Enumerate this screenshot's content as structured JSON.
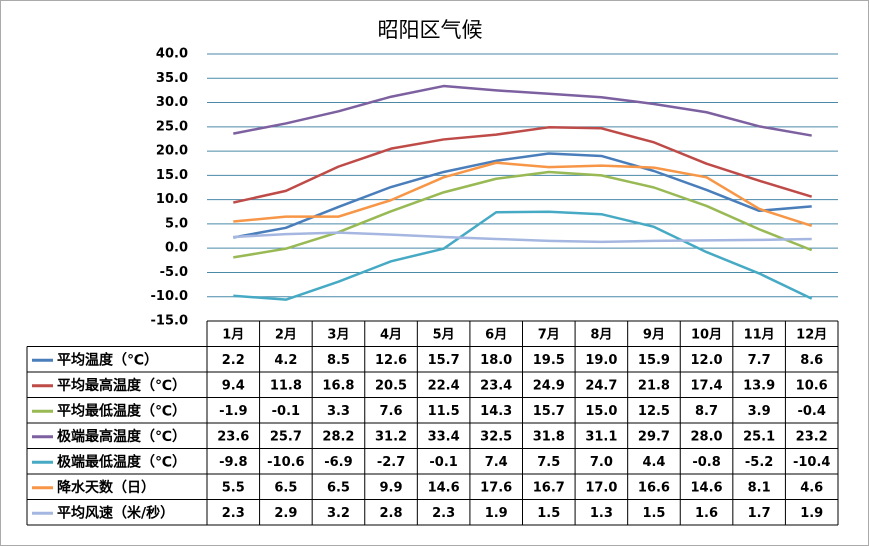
{
  "chart_data": {
    "type": "line",
    "title": "昭阳区气候",
    "categories": [
      "1月",
      "2月",
      "3月",
      "4月",
      "5月",
      "6月",
      "7月",
      "8月",
      "9月",
      "10月",
      "11月",
      "12月"
    ],
    "ylim": [
      -15,
      40
    ],
    "yticks": [
      {
        "value": -15,
        "label": "-15.0"
      },
      {
        "value": -10,
        "label": "-10.0"
      },
      {
        "value": -5,
        "label": "-5.0"
      },
      {
        "value": 0,
        "label": "0.0"
      },
      {
        "value": 5,
        "label": "5.0"
      },
      {
        "value": 10,
        "label": "10.0"
      },
      {
        "value": 15,
        "label": "15.0"
      },
      {
        "value": 20,
        "label": "20.0"
      },
      {
        "value": 25,
        "label": "25.0"
      },
      {
        "value": 30,
        "label": "30.0"
      },
      {
        "value": 35,
        "label": "35.0"
      },
      {
        "value": 40,
        "label": "40.0"
      }
    ],
    "grid": true,
    "series": [
      {
        "name": "平均温度（℃）",
        "color": "#4a7ebb",
        "values": [
          2.2,
          4.2,
          8.5,
          12.6,
          15.7,
          18.0,
          19.5,
          19.0,
          15.9,
          12.0,
          7.7,
          8.6
        ],
        "value_labels": [
          "2.2",
          "4.2",
          "8.5",
          "12.6",
          "15.7",
          "18.0",
          "19.5",
          "19.0",
          "15.9",
          "12.0",
          "7.7",
          "8.6"
        ]
      },
      {
        "name": "平均最高温度（℃）",
        "color": "#be4b48",
        "values": [
          9.4,
          11.8,
          16.8,
          20.5,
          22.4,
          23.4,
          24.9,
          24.7,
          21.8,
          17.4,
          13.9,
          10.6
        ],
        "value_labels": [
          "9.4",
          "11.8",
          "16.8",
          "20.5",
          "22.4",
          "23.4",
          "24.9",
          "24.7",
          "21.8",
          "17.4",
          "13.9",
          "10.6"
        ]
      },
      {
        "name": "平均最低温度（℃）",
        "color": "#98b954",
        "values": [
          -1.9,
          -0.1,
          3.3,
          7.6,
          11.5,
          14.3,
          15.7,
          15.0,
          12.5,
          8.7,
          3.9,
          -0.4
        ],
        "value_labels": [
          "-1.9",
          "-0.1",
          "3.3",
          "7.6",
          "11.5",
          "14.3",
          "15.7",
          "15.0",
          "12.5",
          "8.7",
          "3.9",
          "-0.4"
        ]
      },
      {
        "name": "极端最高温度（℃）",
        "color": "#7d60a0",
        "values": [
          23.6,
          25.7,
          28.2,
          31.2,
          33.4,
          32.5,
          31.8,
          31.1,
          29.7,
          28.0,
          25.1,
          23.2
        ],
        "value_labels": [
          "23.6",
          "25.7",
          "28.2",
          "31.2",
          "33.4",
          "32.5",
          "31.8",
          "31.1",
          "29.7",
          "28.0",
          "25.1",
          "23.2"
        ]
      },
      {
        "name": "极端最低温度（℃）",
        "color": "#46aac5",
        "values": [
          -9.8,
          -10.6,
          -6.9,
          -2.7,
          -0.1,
          7.4,
          7.5,
          7.0,
          4.4,
          -0.8,
          -5.2,
          -10.4
        ],
        "value_labels": [
          "-9.8",
          "-10.6",
          "-6.9",
          "-2.7",
          "-0.1",
          "7.4",
          "7.5",
          "7.0",
          "4.4",
          "-0.8",
          "-5.2",
          "-10.4"
        ]
      },
      {
        "name": "降水天数（日）",
        "color": "#f79646",
        "values": [
          5.5,
          6.5,
          6.5,
          9.9,
          14.6,
          17.6,
          16.7,
          17.0,
          16.6,
          14.6,
          8.1,
          4.6
        ],
        "value_labels": [
          "5.5",
          "6.5",
          "6.5",
          "9.9",
          "14.6",
          "17.6",
          "16.7",
          "17.0",
          "16.6",
          "14.6",
          "8.1",
          "4.6"
        ]
      },
      {
        "name": "平均风速（米/秒）",
        "color": "#a5b6e0",
        "values": [
          2.3,
          2.9,
          3.2,
          2.8,
          2.3,
          1.9,
          1.5,
          1.3,
          1.5,
          1.6,
          1.7,
          1.9
        ],
        "value_labels": [
          "2.3",
          "2.9",
          "3.2",
          "2.8",
          "2.3",
          "1.9",
          "1.5",
          "1.3",
          "1.5",
          "1.6",
          "1.7",
          "1.9"
        ]
      }
    ]
  }
}
